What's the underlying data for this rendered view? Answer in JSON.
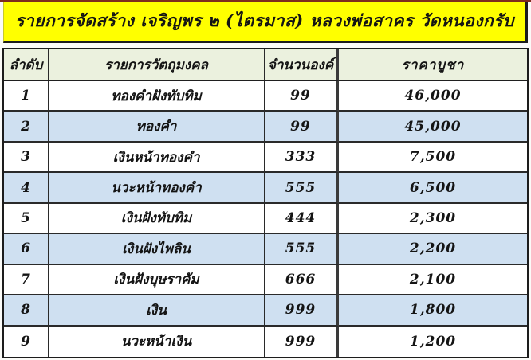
{
  "page": {
    "title": "รายการจัดสร้าง เจริญพร ๒ (ไตรมาส) หลวงพ่อสาคร วัดหนองกรับ"
  },
  "table": {
    "columns": [
      "ลำดับ",
      "รายการวัตถุมงคล",
      "จำนวนองค์",
      "ราคาบูชา"
    ],
    "rows": [
      {
        "no": "1",
        "item": "ทองคำฝังทับทิม",
        "qty": "99",
        "price": "46,000"
      },
      {
        "no": "2",
        "item": "ทองคำ",
        "qty": "99",
        "price": "45,000"
      },
      {
        "no": "3",
        "item": "เงินหน้าทองคำ",
        "qty": "333",
        "price": "7,500"
      },
      {
        "no": "4",
        "item": "นวะหน้าทองคำ",
        "qty": "555",
        "price": "6,500"
      },
      {
        "no": "5",
        "item": "เงินฝังทับทิม",
        "qty": "444",
        "price": "2,300"
      },
      {
        "no": "6",
        "item": "เงินฝังไพลิน",
        "qty": "555",
        "price": "2,200"
      },
      {
        "no": "7",
        "item": "เงินฝังบุษราคัม",
        "qty": "666",
        "price": "2,100"
      },
      {
        "no": "8",
        "item": "เงิน",
        "qty": "999",
        "price": "1,800"
      },
      {
        "no": "9",
        "item": "นวะหน้าเงิน",
        "qty": "999",
        "price": "1,200"
      }
    ]
  },
  "colors": {
    "banner_yellow": "#ffff00",
    "header_green": "#ebf1de",
    "row_blue": "#cfe0f1",
    "row_white": "#ffffff",
    "border_dark": "#1c1c1c",
    "top_line_maroon": "#7e2b1e"
  }
}
